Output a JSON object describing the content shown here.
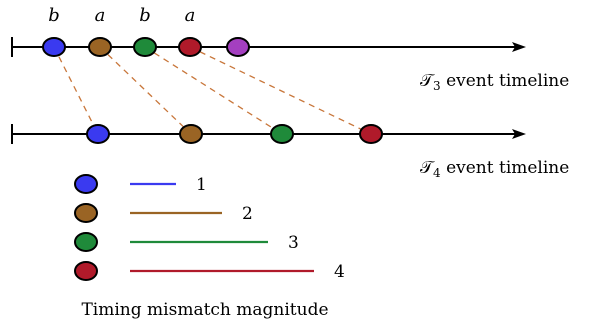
{
  "top_timeline": {
    "label_script": "𝒯",
    "label_sub": "3",
    "label_text": " event timeline",
    "event_letters": [
      "b",
      "a",
      "b",
      "a"
    ],
    "events": [
      {
        "color": "#3a3af0"
      },
      {
        "color": "#9a6424"
      },
      {
        "color": "#1f8a3a"
      },
      {
        "color": "#b01a2a"
      },
      {
        "color": "#a43fc0"
      }
    ]
  },
  "bottom_timeline": {
    "label_script": "𝒯",
    "label_sub": "4",
    "label_text": " event timeline",
    "events": [
      {
        "color": "#3a3af0"
      },
      {
        "color": "#9a6424"
      },
      {
        "color": "#1f8a3a"
      },
      {
        "color": "#b01a2a"
      }
    ]
  },
  "legend": {
    "title": "Timing mismatch magnitude",
    "items": [
      {
        "color": "#3a3af0",
        "label": "1",
        "magnitude": 1
      },
      {
        "color": "#9a6424",
        "label": "2",
        "magnitude": 2
      },
      {
        "color": "#1f8a3a",
        "label": "3",
        "magnitude": 3
      },
      {
        "color": "#b01a2a",
        "label": "4",
        "magnitude": 4
      }
    ]
  },
  "connector_color": "#c8763a"
}
